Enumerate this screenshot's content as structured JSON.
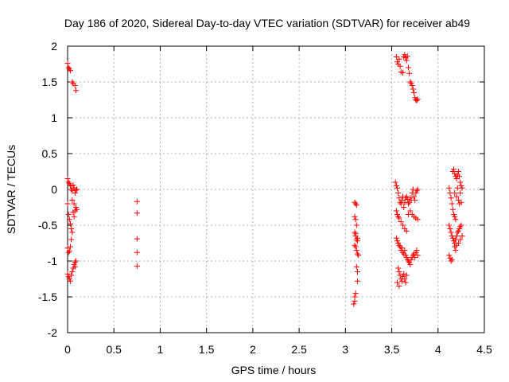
{
  "chart_data": {
    "type": "scatter",
    "title": "Day 186 of 2020, Sidereal Day-to-day VTEC variation (SDTVAR) for receiver ab49",
    "xlabel": "GPS time / hours",
    "ylabel": "SDTVAR / TECUs",
    "xlim": [
      0,
      4.5
    ],
    "ylim": [
      -2,
      2
    ],
    "xticks": [
      0,
      0.5,
      1,
      1.5,
      2,
      2.5,
      3,
      3.5,
      4,
      4.5
    ],
    "xtick_labels": [
      "0",
      "0.5",
      "1",
      "1.5",
      "2",
      "2.5",
      "3",
      "3.5",
      "4",
      "4.5"
    ],
    "yticks": [
      -2,
      -1.5,
      -1,
      -0.5,
      0,
      0.5,
      1,
      1.5,
      2
    ],
    "ytick_labels": [
      "-2",
      "-1.5",
      "-1",
      "-0.5",
      "0",
      "0.5",
      "1",
      "1.5",
      "2"
    ],
    "grid": true,
    "marker": "+",
    "color": "#ff0000",
    "series": [
      {
        "name": "SDTVAR",
        "points": [
          [
            0.0,
            1.76
          ],
          [
            0.01,
            1.7
          ],
          [
            0.02,
            1.68
          ],
          [
            0.03,
            1.66
          ],
          [
            0.05,
            1.5
          ],
          [
            0.06,
            1.48
          ],
          [
            0.08,
            1.45
          ],
          [
            0.09,
            1.38
          ],
          [
            0.0,
            0.15
          ],
          [
            0.01,
            0.1
          ],
          [
            0.02,
            0.08
          ],
          [
            0.03,
            0.05
          ],
          [
            0.04,
            0.0
          ],
          [
            0.05,
            -0.02
          ],
          [
            0.06,
            0.06
          ],
          [
            0.07,
            0.02
          ],
          [
            0.08,
            -0.05
          ],
          [
            0.09,
            -0.01
          ],
          [
            0.1,
            0.0
          ],
          [
            0.0,
            -0.2
          ],
          [
            0.01,
            -0.35
          ],
          [
            0.02,
            -0.42
          ],
          [
            0.03,
            -0.48
          ],
          [
            0.04,
            -0.55
          ],
          [
            0.05,
            -0.6
          ],
          [
            0.06,
            -0.32
          ],
          [
            0.07,
            -0.38
          ],
          [
            0.08,
            -0.3
          ],
          [
            0.09,
            -0.25
          ],
          [
            0.1,
            -0.28
          ],
          [
            0.05,
            -0.15
          ],
          [
            0.07,
            -0.2
          ],
          [
            0.04,
            -0.7
          ],
          [
            0.03,
            -0.8
          ],
          [
            0.0,
            -0.82
          ],
          [
            0.01,
            -0.88
          ],
          [
            0.02,
            -0.86
          ],
          [
            0.0,
            -1.18
          ],
          [
            0.01,
            -1.22
          ],
          [
            0.02,
            -1.25
          ],
          [
            0.03,
            -1.28
          ],
          [
            0.04,
            -1.2
          ],
          [
            0.05,
            -1.15
          ],
          [
            0.06,
            -1.1
          ],
          [
            0.07,
            -1.05
          ],
          [
            0.08,
            -1.02
          ],
          [
            0.09,
            -1.0
          ],
          [
            0.08,
            -1.08
          ],
          [
            0.75,
            -0.17
          ],
          [
            0.75,
            -0.33
          ],
          [
            0.75,
            -0.69
          ],
          [
            0.75,
            -0.88
          ],
          [
            0.75,
            -1.07
          ],
          [
            3.1,
            -0.18
          ],
          [
            3.11,
            -0.2
          ],
          [
            3.12,
            -0.22
          ],
          [
            3.1,
            -0.38
          ],
          [
            3.11,
            -0.42
          ],
          [
            3.12,
            -0.5
          ],
          [
            3.1,
            -0.6
          ],
          [
            3.11,
            -0.65
          ],
          [
            3.12,
            -0.7
          ],
          [
            3.13,
            -0.72
          ],
          [
            3.1,
            -0.78
          ],
          [
            3.11,
            -0.8
          ],
          [
            3.12,
            -0.85
          ],
          [
            3.13,
            -0.9
          ],
          [
            3.14,
            -0.92
          ],
          [
            3.11,
            -0.62
          ],
          [
            3.13,
            -0.68
          ],
          [
            3.12,
            -1.08
          ],
          [
            3.13,
            -1.15
          ],
          [
            3.13,
            -1.28
          ],
          [
            3.11,
            -1.45
          ],
          [
            3.1,
            -1.5
          ],
          [
            3.1,
            -1.56
          ],
          [
            3.09,
            -1.6
          ],
          [
            3.55,
            1.85
          ],
          [
            3.56,
            1.78
          ],
          [
            3.57,
            1.75
          ],
          [
            3.58,
            1.82
          ],
          [
            3.59,
            1.72
          ],
          [
            3.6,
            1.64
          ],
          [
            3.62,
            1.63
          ],
          [
            3.63,
            1.85
          ],
          [
            3.64,
            1.88
          ],
          [
            3.65,
            1.84
          ],
          [
            3.66,
            1.8
          ],
          [
            3.67,
            1.86
          ],
          [
            3.68,
            1.7
          ],
          [
            3.69,
            1.62
          ],
          [
            3.7,
            1.5
          ],
          [
            3.71,
            1.48
          ],
          [
            3.72,
            1.45
          ],
          [
            3.73,
            1.4
          ],
          [
            3.74,
            1.35
          ],
          [
            3.75,
            1.28
          ],
          [
            3.76,
            1.25
          ],
          [
            3.77,
            1.24
          ],
          [
            3.78,
            1.26
          ],
          [
            3.54,
            0.1
          ],
          [
            3.55,
            0.05
          ],
          [
            3.56,
            0.02
          ],
          [
            3.57,
            -0.05
          ],
          [
            3.58,
            -0.12
          ],
          [
            3.59,
            -0.18
          ],
          [
            3.6,
            -0.2
          ],
          [
            3.61,
            -0.15
          ],
          [
            3.62,
            -0.1
          ],
          [
            3.63,
            -0.25
          ],
          [
            3.64,
            -0.18
          ],
          [
            3.65,
            -0.12
          ],
          [
            3.66,
            -0.1
          ],
          [
            3.67,
            -0.14
          ],
          [
            3.68,
            -0.2
          ],
          [
            3.69,
            -0.18
          ],
          [
            3.7,
            -0.12
          ],
          [
            3.71,
            -0.15
          ],
          [
            3.72,
            -0.05
          ],
          [
            3.73,
            0.0
          ],
          [
            3.74,
            -0.1
          ],
          [
            3.75,
            -0.15
          ],
          [
            3.76,
            -0.05
          ],
          [
            3.77,
            -0.02
          ],
          [
            3.78,
            0.0
          ],
          [
            3.55,
            -0.3
          ],
          [
            3.56,
            -0.35
          ],
          [
            3.57,
            -0.38
          ],
          [
            3.58,
            -0.4
          ],
          [
            3.6,
            -0.45
          ],
          [
            3.62,
            -0.5
          ],
          [
            3.64,
            -0.55
          ],
          [
            3.66,
            -0.58
          ],
          [
            3.68,
            -0.35
          ],
          [
            3.7,
            -0.3
          ],
          [
            3.72,
            -0.35
          ],
          [
            3.74,
            -0.38
          ],
          [
            3.76,
            -0.4
          ],
          [
            3.78,
            -0.42
          ],
          [
            3.55,
            -0.68
          ],
          [
            3.56,
            -0.72
          ],
          [
            3.57,
            -0.75
          ],
          [
            3.58,
            -0.78
          ],
          [
            3.59,
            -0.8
          ],
          [
            3.6,
            -0.85
          ],
          [
            3.61,
            -0.82
          ],
          [
            3.62,
            -0.88
          ],
          [
            3.63,
            -0.9
          ],
          [
            3.64,
            -0.85
          ],
          [
            3.65,
            -0.92
          ],
          [
            3.66,
            -0.95
          ],
          [
            3.67,
            -0.98
          ],
          [
            3.68,
            -1.0
          ],
          [
            3.69,
            -1.02
          ],
          [
            3.7,
            -1.05
          ],
          [
            3.71,
            -0.98
          ],
          [
            3.72,
            -0.95
          ],
          [
            3.73,
            -0.92
          ],
          [
            3.74,
            -0.9
          ],
          [
            3.75,
            -0.95
          ],
          [
            3.76,
            -0.88
          ],
          [
            3.77,
            -0.85
          ],
          [
            3.78,
            -0.92
          ],
          [
            3.57,
            -1.1
          ],
          [
            3.58,
            -1.15
          ],
          [
            3.59,
            -1.2
          ],
          [
            3.6,
            -1.25
          ],
          [
            3.61,
            -1.28
          ],
          [
            3.62,
            -1.22
          ],
          [
            3.63,
            -1.18
          ],
          [
            3.64,
            -1.25
          ],
          [
            3.65,
            -1.3
          ],
          [
            3.66,
            -1.2
          ],
          [
            3.58,
            -1.35
          ],
          [
            3.56,
            -1.3
          ],
          [
            4.12,
            0.02
          ],
          [
            4.13,
            -0.05
          ],
          [
            4.14,
            -0.12
          ],
          [
            4.15,
            -0.2
          ],
          [
            4.16,
            -0.28
          ],
          [
            4.17,
            -0.35
          ],
          [
            4.18,
            -0.38
          ],
          [
            4.19,
            -0.42
          ],
          [
            4.12,
            -0.5
          ],
          [
            4.13,
            -0.55
          ],
          [
            4.14,
            -0.6
          ],
          [
            4.15,
            -0.65
          ],
          [
            4.16,
            -0.68
          ],
          [
            4.17,
            -0.72
          ],
          [
            4.18,
            -0.75
          ],
          [
            4.19,
            -0.7
          ],
          [
            4.2,
            -0.65
          ],
          [
            4.21,
            -0.6
          ],
          [
            4.22,
            -0.58
          ],
          [
            4.23,
            -0.55
          ],
          [
            4.24,
            -0.52
          ],
          [
            4.25,
            -0.5
          ],
          [
            4.16,
            0.25
          ],
          [
            4.17,
            0.28
          ],
          [
            4.18,
            0.22
          ],
          [
            4.19,
            0.18
          ],
          [
            4.2,
            0.15
          ],
          [
            4.21,
            0.2
          ],
          [
            4.22,
            0.25
          ],
          [
            4.23,
            0.18
          ],
          [
            4.24,
            0.1
          ],
          [
            4.25,
            0.05
          ],
          [
            4.26,
            0.02
          ],
          [
            4.2,
            -0.1
          ],
          [
            4.22,
            -0.15
          ],
          [
            4.24,
            -0.05
          ],
          [
            4.18,
            -0.05
          ],
          [
            4.21,
            0.02
          ],
          [
            4.23,
            -0.2
          ],
          [
            4.25,
            -0.18
          ],
          [
            4.12,
            -0.92
          ],
          [
            4.13,
            -0.96
          ],
          [
            4.14,
            -1.0
          ],
          [
            4.15,
            -0.98
          ],
          [
            4.18,
            -0.8
          ],
          [
            4.2,
            -0.78
          ],
          [
            4.22,
            -0.75
          ],
          [
            4.24,
            -0.7
          ],
          [
            4.26,
            -0.65
          ],
          [
            4.19,
            -0.85
          ]
        ]
      }
    ]
  }
}
